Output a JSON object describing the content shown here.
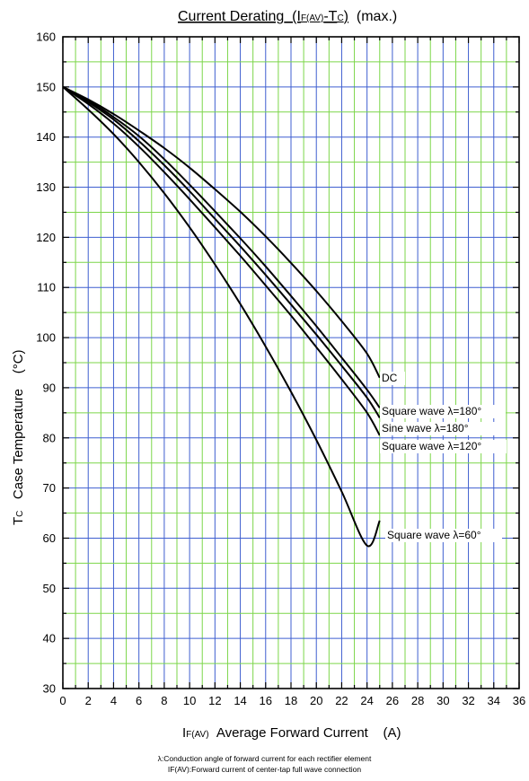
{
  "chart_data": {
    "type": "line",
    "title": {
      "main": "Current Derating",
      "open": "(I",
      "sub1": "F(AV)",
      "dash": "-T",
      "sub2": "C",
      "close": ")",
      "suffix": "(max.)"
    },
    "xlabel": {
      "symbol": "I",
      "sub": "F(AV)",
      "text": "Average Forward Current",
      "unit": "(A)"
    },
    "ylabel": {
      "symbol": "T",
      "sub": "C",
      "text": "Case Temperature",
      "unit": "(°C)"
    },
    "xlim": [
      0,
      36
    ],
    "ylim": [
      30,
      160
    ],
    "x_ticks": [
      "0",
      "2",
      "4",
      "6",
      "8",
      "10",
      "12",
      "14",
      "16",
      "18",
      "20",
      "22",
      "24",
      "26",
      "28",
      "30",
      "32",
      "34",
      "36"
    ],
    "y_ticks": [
      "30",
      "40",
      "50",
      "60",
      "70",
      "80",
      "90",
      "100",
      "110",
      "120",
      "130",
      "140",
      "150",
      "160"
    ],
    "grid": {
      "on": true,
      "minor_color": "#7cd64a",
      "major_color": "#3f5fd0"
    },
    "series": [
      {
        "name": "DC",
        "x": [
          0,
          2,
          4,
          6,
          8,
          10,
          12,
          14,
          16,
          18,
          20,
          22,
          24,
          25
        ],
        "y": [
          150,
          147.5,
          144.6,
          141.3,
          137.8,
          133.9,
          129.6,
          125.1,
          120.2,
          114.9,
          109.3,
          103.3,
          96.8,
          92.0
        ]
      },
      {
        "name": "Square wave λ=180°",
        "x": [
          0,
          2,
          4,
          6,
          8,
          10,
          12,
          14,
          16,
          18,
          20,
          22,
          24,
          25
        ],
        "y": [
          150,
          147.3,
          144.0,
          140.2,
          135.6,
          130.5,
          125.2,
          119.8,
          114.2,
          108.3,
          102.3,
          96.0,
          89.6,
          86.0
        ]
      },
      {
        "name": "Sine wave λ=180°",
        "x": [
          0,
          2,
          4,
          6,
          8,
          10,
          12,
          14,
          16,
          18,
          20,
          22,
          24,
          25
        ],
        "y": [
          150,
          147.0,
          143.5,
          139.2,
          134.4,
          129.2,
          123.7,
          118.2,
          112.5,
          106.6,
          100.6,
          94.4,
          88.0,
          84.0
        ]
      },
      {
        "name": "Square wave λ=120°",
        "x": [
          0,
          2,
          4,
          6,
          8,
          10,
          12,
          14,
          16,
          18,
          20,
          22,
          24,
          25
        ],
        "y": [
          150,
          146.6,
          142.7,
          138.1,
          133.0,
          127.6,
          122.0,
          116.3,
          110.4,
          104.4,
          98.1,
          91.7,
          85.0,
          80.5
        ]
      },
      {
        "name": "Square wave λ=60°",
        "x": [
          0,
          2,
          4,
          6,
          8,
          10,
          12,
          14,
          16,
          18,
          20,
          22,
          24,
          25
        ],
        "y": [
          150,
          145.5,
          140.6,
          135.0,
          128.8,
          122.0,
          114.6,
          106.7,
          98.2,
          89.2,
          79.6,
          69.3,
          58.5,
          63.5
        ]
      }
    ],
    "series_labels": [
      "DC",
      "Square wave  λ=180°",
      "Sine wave  λ=180°",
      "Square wave  λ=120°",
      "Square wave  λ=60°"
    ]
  },
  "notes": {
    "line1": "λ:Conduction angle of forward current for each rectifier element",
    "line2": "IF(AV):Forward current of center-tap full wave connection"
  },
  "colors": {
    "minor_grid": "#7cd64a",
    "major_grid": "#3f5fd0",
    "curve": "#000000",
    "frame": "#000000"
  }
}
